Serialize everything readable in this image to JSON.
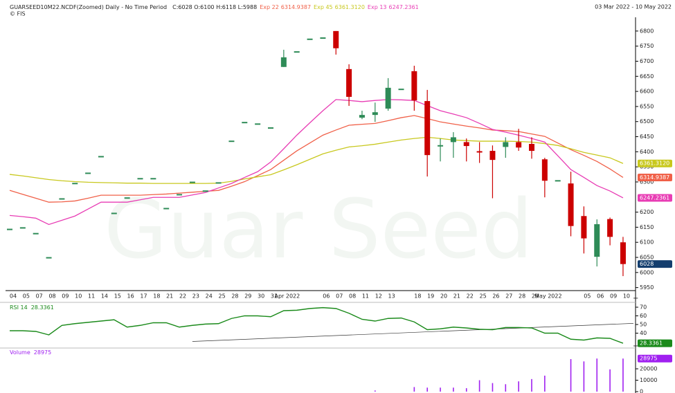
{
  "header": {
    "title": "GUARSEED10M22.NCDF(Zoomed) Daily -  No Time Period",
    "ohlc": "C:6028 O:6100 H:6118 L:5988",
    "source": "© FIS",
    "date_range": "03 Mar 2022  -  10 May 2022",
    "watermark": "Guar Seed"
  },
  "chart_data": [
    {
      "type": "candlestick",
      "categories": [
        "04",
        "05",
        "07",
        "08",
        "09",
        "10",
        "11",
        "14",
        "15",
        "16",
        "17",
        "18",
        "21",
        "22",
        "23",
        "24",
        "25",
        "28",
        "29",
        "30",
        "31",
        "Apr 2022",
        null,
        null,
        "06",
        "07",
        "08",
        "11",
        "12",
        "13",
        null,
        "18",
        "19",
        "20",
        "21",
        "22",
        "25",
        "26",
        "27",
        "28",
        "29",
        "May 2022",
        null,
        null,
        "05",
        "06",
        "09",
        "10"
      ],
      "open": [
        6145,
        6150,
        6131,
        6051,
        6246,
        6297,
        6331,
        6386,
        6198,
        6249,
        6313,
        6313,
        6214,
        6260,
        6301,
        6272,
        6299,
        6437,
        6499,
        6494,
        6481,
        6681,
        6733,
        6775,
        6779,
        6800,
        6674,
        6513,
        6522,
        6543,
        6609,
        6667,
        6568,
        6418,
        6432,
        6432,
        6402,
        6403,
        6416,
        6432,
        6426,
        6375,
        6306,
        6295,
        6187,
        6052,
        6177,
        6100
      ],
      "high": [
        6145,
        6150,
        6131,
        6051,
        6246,
        6297,
        6331,
        6386,
        6198,
        6249,
        6313,
        6313,
        6214,
        6260,
        6301,
        6272,
        6299,
        6437,
        6499,
        6494,
        6481,
        6738,
        6733,
        6775,
        6779,
        6800,
        6690,
        6536,
        6563,
        6644,
        6609,
        6685,
        6605,
        6444,
        6465,
        6444,
        6432,
        6421,
        6448,
        6476,
        6448,
        6380,
        6306,
        6334,
        6219,
        6176,
        6182,
        6118
      ],
      "low": [
        6145,
        6150,
        6131,
        6051,
        6246,
        6297,
        6331,
        6386,
        6198,
        6249,
        6313,
        6313,
        6214,
        6260,
        6301,
        6272,
        6299,
        6437,
        6499,
        6494,
        6481,
        6681,
        6733,
        6775,
        6779,
        6722,
        6552,
        6508,
        6499,
        6536,
        6609,
        6536,
        6318,
        6368,
        6380,
        6368,
        6363,
        6246,
        6380,
        6403,
        6377,
        6249,
        6306,
        6120,
        6063,
        6020,
        6090,
        5988
      ],
      "close": [
        6145,
        6150,
        6131,
        6051,
        6246,
        6297,
        6331,
        6386,
        6198,
        6249,
        6313,
        6313,
        6214,
        6260,
        6301,
        6272,
        6299,
        6437,
        6499,
        6494,
        6481,
        6713,
        6733,
        6775,
        6779,
        6743,
        6582,
        6522,
        6531,
        6612,
        6609,
        6570,
        6389,
        6422,
        6448,
        6419,
        6400,
        6373,
        6432,
        6414,
        6403,
        6304,
        6306,
        6154,
        6113,
        6160,
        6118,
        6028
      ],
      "up_color": "#2e8b57",
      "down_color": "#cc0000",
      "last_color": "#143e6e",
      "series": [
        {
          "name": "Exp 22",
          "color": "#f06048",
          "value_label": "6314.9387",
          "values": [
            6272,
            6259,
            6246,
            6233,
            6234,
            6237,
            6246,
            6256,
            6256,
            6256,
            6256,
            6258,
            6260,
            6263,
            6266,
            6269,
            6272,
            6286,
            6301,
            6321,
            6341,
            6372,
            6403,
            6429,
            6455,
            6472,
            6488,
            6491,
            6494,
            6503,
            6513,
            6520,
            6510,
            6499,
            6492,
            6485,
            6479,
            6472,
            6470,
            6467,
            6459,
            6451,
            6429,
            6407,
            6388,
            6368,
            6343,
            6314.9387
          ]
        },
        {
          "name": "Exp 45",
          "color": "#c8c81e",
          "value_label": "6361.3120",
          "values": [
            6325,
            6320,
            6314,
            6308,
            6304,
            6301,
            6299,
            6298,
            6297,
            6296,
            6296,
            6295,
            6295,
            6295,
            6295,
            6295,
            6296,
            6302,
            6310,
            6317,
            6324,
            6340,
            6357,
            6375,
            6393,
            6405,
            6416,
            6420,
            6425,
            6432,
            6439,
            6444,
            6448,
            6444,
            6439,
            6437,
            6435,
            6435,
            6435,
            6434,
            6432,
            6427,
            6421,
            6410,
            6398,
            6389,
            6380,
            6361.312
          ]
        },
        {
          "name": "Exp 13",
          "color": "#e83cb4",
          "value_label": "6247.2361",
          "values": [
            6189,
            6185,
            6180,
            6159,
            6173,
            6187,
            6210,
            6233,
            6233,
            6233,
            6241,
            6249,
            6249,
            6249,
            6257,
            6265,
            6280,
            6295,
            6315,
            6334,
            6366,
            6410,
            6455,
            6496,
            6536,
            6573,
            6570,
            6566,
            6570,
            6573,
            6572,
            6570,
            6553,
            6536,
            6525,
            6513,
            6494,
            6474,
            6465,
            6455,
            6444,
            6432,
            6387,
            6341,
            6315,
            6288,
            6270,
            6247.2361
          ]
        }
      ],
      "ylim": [
        5940,
        6857
      ],
      "yticks": [
        5950,
        6000,
        6050,
        6100,
        6150,
        6200,
        6300,
        6350,
        6400,
        6450,
        6500,
        6550,
        6600,
        6650,
        6700,
        6750,
        6800
      ]
    },
    {
      "type": "line",
      "name": "RSI 14",
      "color": "#1a8a1a",
      "values": [
        42.8,
        42.8,
        42,
        38,
        49,
        51,
        52.5,
        54,
        55.5,
        47,
        49,
        52,
        52,
        47,
        49,
        50.5,
        51,
        57,
        60,
        60,
        59,
        66,
        66.5,
        68.5,
        69.5,
        68.5,
        63,
        56,
        54,
        57,
        57.5,
        53,
        44,
        45,
        47,
        46,
        44.5,
        44,
        46.5,
        46.5,
        46,
        40,
        40,
        33,
        32,
        34.5,
        34,
        28.3361
      ],
      "trendline": {
        "x": [
          14,
          47
        ],
        "values": [
          30.4,
          50.8
        ]
      },
      "ylim": [
        23.6,
        74.8
      ],
      "yticks": [
        40,
        50,
        60,
        70
      ]
    },
    {
      "type": "bar",
      "name": "Volume",
      "color": "#a020f0",
      "values": [
        0,
        0,
        0,
        0,
        0,
        0,
        0,
        0,
        0,
        0,
        0,
        0,
        0,
        0,
        0,
        0,
        0,
        0,
        0,
        0,
        0,
        0,
        0,
        0,
        0,
        0,
        0,
        0,
        1000,
        0,
        0,
        4000,
        3500,
        3500,
        3500,
        3000,
        10000,
        7500,
        6500,
        9000,
        11000,
        14000,
        0,
        28500,
        26500,
        29000,
        19500,
        28975
      ],
      "ylim": [
        0,
        37000
      ],
      "yticks": [
        0,
        10000,
        20000
      ]
    }
  ]
}
